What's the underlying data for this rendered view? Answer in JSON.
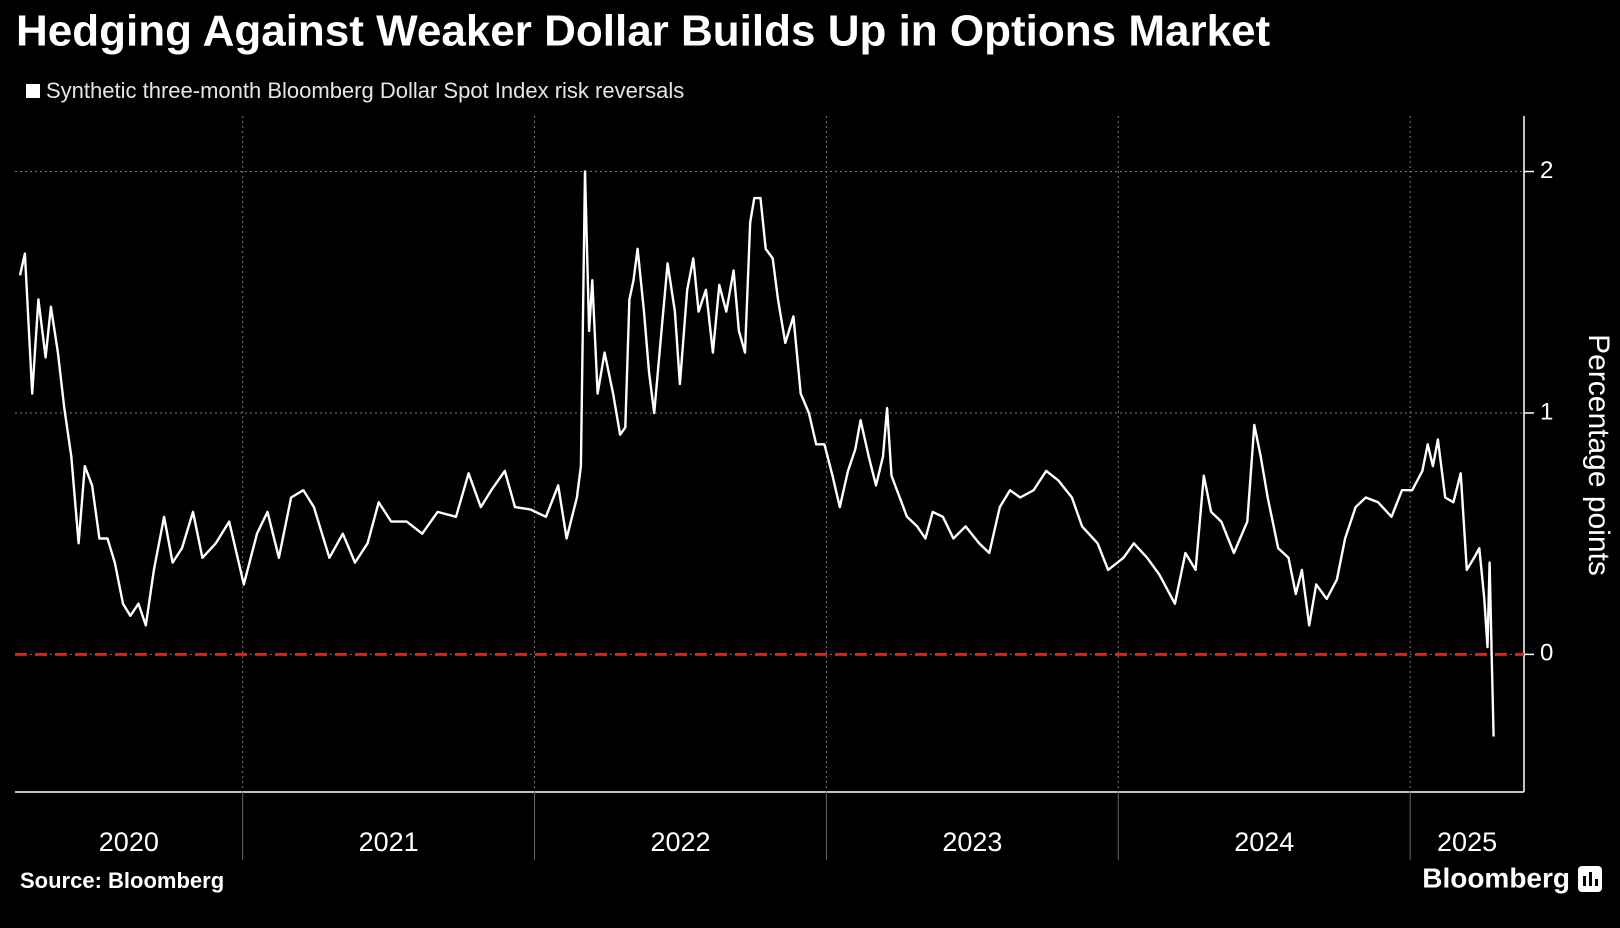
{
  "chart_data": {
    "type": "line",
    "title": "Hedging Against Weaker Dollar Builds Up in Options Market",
    "y_label": "Percentage points",
    "source": "Source: Bloomberg",
    "brand": "Bloomberg",
    "x": [
      2020.237,
      2020.254,
      2020.279,
      2020.3,
      2020.325,
      2020.343,
      2020.367,
      2020.389,
      2020.413,
      2020.438,
      2020.459,
      2020.484,
      2020.509,
      2020.537,
      2020.562,
      2020.59,
      2020.615,
      2020.643,
      2020.668,
      2020.696,
      2020.731,
      2020.76,
      2020.792,
      2020.83,
      2020.862,
      2020.908,
      2020.954,
      2021.004,
      2021.049,
      2021.085,
      2021.124,
      2021.166,
      2021.208,
      2021.244,
      2021.297,
      2021.343,
      2021.385,
      2021.428,
      2021.466,
      2021.509,
      2021.562,
      2021.615,
      2021.668,
      2021.731,
      2021.774,
      2021.816,
      2021.852,
      2021.898,
      2021.933,
      2021.986,
      2022.039,
      2022.081,
      2022.11,
      2022.145,
      2022.159,
      2022.173,
      2022.187,
      2022.198,
      2022.216,
      2022.24,
      2022.269,
      2022.293,
      2022.311,
      2022.325,
      2022.339,
      2022.353,
      2022.375,
      2022.392,
      2022.41,
      2022.435,
      2022.456,
      2022.481,
      2022.498,
      2022.523,
      2022.544,
      2022.562,
      2022.587,
      2022.611,
      2022.633,
      2022.657,
      2022.682,
      2022.7,
      2022.721,
      2022.739,
      2022.753,
      2022.774,
      2022.792,
      2022.816,
      2022.834,
      2022.859,
      2022.887,
      2022.912,
      2022.94,
      2022.965,
      2022.993,
      2023.021,
      2023.046,
      2023.074,
      2023.099,
      2023.117,
      2023.145,
      2023.17,
      2023.194,
      2023.208,
      2023.223,
      2023.251,
      2023.276,
      2023.311,
      2023.339,
      2023.364,
      2023.399,
      2023.435,
      2023.477,
      2023.523,
      2023.558,
      2023.594,
      2023.629,
      2023.664,
      2023.71,
      2023.753,
      2023.795,
      2023.841,
      2023.876,
      2023.929,
      2023.965,
      2024.018,
      2024.053,
      2024.099,
      2024.141,
      2024.194,
      2024.23,
      2024.265,
      2024.293,
      2024.318,
      2024.353,
      2024.396,
      2024.442,
      2024.466,
      2024.488,
      2024.512,
      2024.548,
      2024.583,
      2024.608,
      2024.629,
      2024.654,
      2024.678,
      2024.714,
      2024.749,
      2024.777,
      2024.813,
      2024.848,
      2024.89,
      2024.936,
      2024.972,
      2025.007,
      2025.042,
      2025.06,
      2025.078,
      2025.095,
      2025.12,
      2025.148,
      2025.173,
      2025.194,
      2025.219,
      2025.237,
      2025.254,
      2025.265,
      2025.272,
      2025.279,
      2025.286
    ],
    "series": [
      {
        "name": "Synthetic three-month Bloomberg Dollar Spot Index risk reversals",
        "color": "#ffffff",
        "values": [
          1.57,
          1.66,
          1.08,
          1.47,
          1.23,
          1.44,
          1.25,
          1.02,
          0.82,
          0.46,
          0.78,
          0.7,
          0.48,
          0.48,
          0.38,
          0.21,
          0.16,
          0.21,
          0.12,
          0.35,
          0.57,
          0.38,
          0.44,
          0.59,
          0.4,
          0.46,
          0.55,
          0.29,
          0.5,
          0.59,
          0.4,
          0.65,
          0.68,
          0.61,
          0.4,
          0.5,
          0.38,
          0.46,
          0.63,
          0.55,
          0.55,
          0.5,
          0.59,
          0.57,
          0.75,
          0.61,
          0.68,
          0.76,
          0.61,
          0.6,
          0.57,
          0.7,
          0.48,
          0.65,
          0.78,
          2.0,
          1.34,
          1.55,
          1.08,
          1.25,
          1.08,
          0.91,
          0.94,
          1.47,
          1.55,
          1.68,
          1.42,
          1.17,
          1.0,
          1.34,
          1.62,
          1.42,
          1.12,
          1.51,
          1.64,
          1.42,
          1.51,
          1.25,
          1.53,
          1.42,
          1.59,
          1.34,
          1.25,
          1.79,
          1.89,
          1.89,
          1.68,
          1.64,
          1.47,
          1.29,
          1.4,
          1.08,
          1.0,
          0.87,
          0.87,
          0.74,
          0.61,
          0.76,
          0.85,
          0.97,
          0.82,
          0.7,
          0.82,
          1.02,
          0.74,
          0.65,
          0.57,
          0.53,
          0.48,
          0.59,
          0.57,
          0.48,
          0.53,
          0.46,
          0.42,
          0.61,
          0.68,
          0.65,
          0.68,
          0.76,
          0.72,
          0.65,
          0.53,
          0.46,
          0.35,
          0.4,
          0.46,
          0.4,
          0.33,
          0.21,
          0.42,
          0.35,
          0.74,
          0.59,
          0.55,
          0.42,
          0.55,
          0.95,
          0.82,
          0.65,
          0.44,
          0.4,
          0.25,
          0.35,
          0.12,
          0.29,
          0.23,
          0.31,
          0.48,
          0.61,
          0.65,
          0.63,
          0.57,
          0.68,
          0.68,
          0.76,
          0.87,
          0.78,
          0.89,
          0.65,
          0.63,
          0.75,
          0.35,
          0.4,
          0.44,
          0.23,
          0.03,
          0.38,
          0.01,
          -0.34
        ]
      }
    ],
    "xlim": [
      2020.22,
      2025.39
    ],
    "xticks": [
      {
        "value": 2020,
        "label": "2020"
      },
      {
        "value": 2021,
        "label": "2021"
      },
      {
        "value": 2022,
        "label": "2022"
      },
      {
        "value": 2023,
        "label": "2023"
      },
      {
        "value": 2024,
        "label": "2024"
      },
      {
        "value": 2025,
        "label": "2025"
      }
    ],
    "ylim": [
      -0.57,
      2.23
    ],
    "yticks": [
      0,
      1,
      2
    ],
    "grid": true,
    "reference_line": {
      "value": 0,
      "color": "#e3211c"
    }
  }
}
